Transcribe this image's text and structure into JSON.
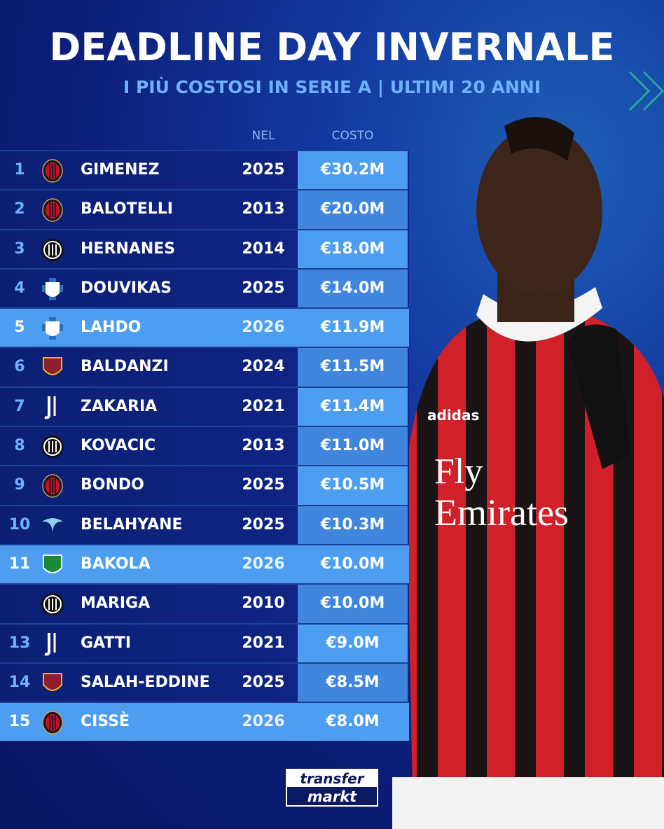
{
  "header": {
    "title": "DEADLINE DAY INVERNALE",
    "subtitle": "I PIÙ COSTOSI IN SERIE A | ULTIMI 20 ANNI"
  },
  "columns": {
    "year": "NEL",
    "cost": "COSTO"
  },
  "colors": {
    "milan": "#c8102e",
    "inter": "#0a2a8a",
    "como": "#2a6fb8",
    "roma": "#8e1f2f",
    "juve": "#111111",
    "lazio": "#8fd0f0",
    "sassuolo": "#1a8a3a",
    "highlight": "#4d9ef0"
  },
  "rows": [
    {
      "rank": "1",
      "club": "milan",
      "name": "GIMENEZ",
      "year": "2025",
      "cost": "€30.2M",
      "highlight": false
    },
    {
      "rank": "2",
      "club": "milan",
      "name": "BALOTELLI",
      "year": "2013",
      "cost": "€20.0M",
      "highlight": false
    },
    {
      "rank": "3",
      "club": "inter",
      "name": "HERNANES",
      "year": "2014",
      "cost": "€18.0M",
      "highlight": false
    },
    {
      "rank": "4",
      "club": "como",
      "name": "DOUVIKAS",
      "year": "2025",
      "cost": "€14.0M",
      "highlight": false
    },
    {
      "rank": "5",
      "club": "como",
      "name": "LAHDO",
      "year": "2026",
      "cost": "€11.9M",
      "highlight": true
    },
    {
      "rank": "6",
      "club": "roma",
      "name": "BALDANZI",
      "year": "2024",
      "cost": "€11.5M",
      "highlight": false
    },
    {
      "rank": "7",
      "club": "juve",
      "name": "ZAKARIA",
      "year": "2021",
      "cost": "€11.4M",
      "highlight": false
    },
    {
      "rank": "8",
      "club": "inter",
      "name": "KOVACIC",
      "year": "2013",
      "cost": "€11.0M",
      "highlight": false
    },
    {
      "rank": "9",
      "club": "milan",
      "name": "BONDO",
      "year": "2025",
      "cost": "€10.5M",
      "highlight": false
    },
    {
      "rank": "10",
      "club": "lazio",
      "name": "BELAHYANE",
      "year": "2025",
      "cost": "€10.3M",
      "highlight": false
    },
    {
      "rank": "11",
      "club": "sassuolo",
      "name": "BAKOLA",
      "year": "2026",
      "cost": "€10.0M",
      "highlight": true
    },
    {
      "rank": "",
      "club": "inter",
      "name": "MARIGA",
      "year": "2010",
      "cost": "€10.0M",
      "highlight": false
    },
    {
      "rank": "13",
      "club": "juve",
      "name": "GATTI",
      "year": "2021",
      "cost": "€9.0M",
      "highlight": false
    },
    {
      "rank": "14",
      "club": "roma",
      "name": "SALAH-EDDINE",
      "year": "2025",
      "cost": "€8.5M",
      "highlight": false
    },
    {
      "rank": "15",
      "club": "milan",
      "name": "CISSÈ",
      "year": "2026",
      "cost": "€8.0M",
      "highlight": true
    }
  ],
  "brand": {
    "line1": "transfer",
    "line2": "markt"
  },
  "photo": {
    "shirt_text_1": "Fly",
    "shirt_text_2": "Emirates",
    "shirt_brand": "adidas"
  }
}
